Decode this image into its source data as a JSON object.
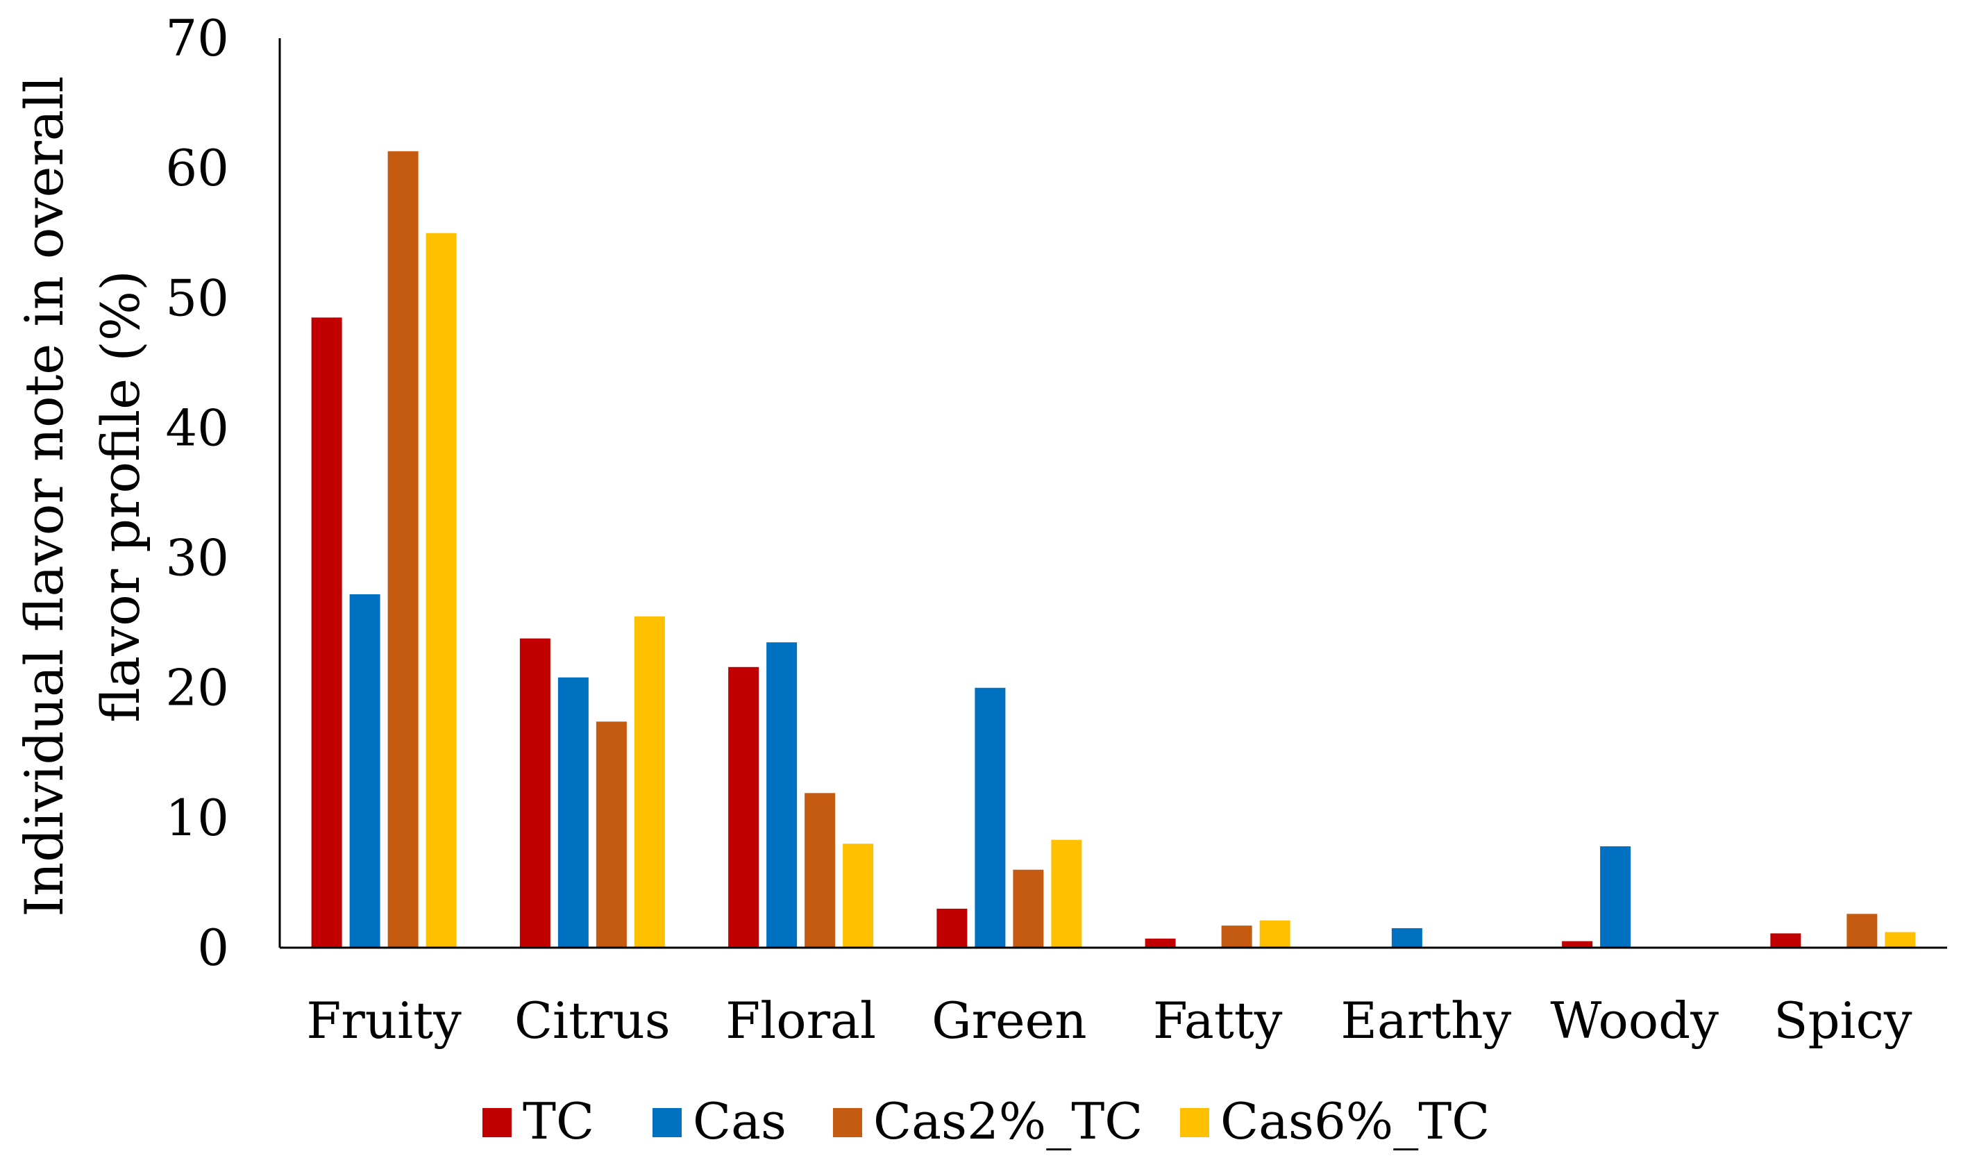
{
  "chart_data": {
    "type": "bar",
    "title": "",
    "xlabel": "",
    "ylabel_line1": "Individual flavor note in overall",
    "ylabel_line2": "flavor profile (%)",
    "ylim": [
      0,
      70
    ],
    "yticks": [
      0,
      10,
      20,
      30,
      40,
      50,
      60,
      70
    ],
    "ytick_labels": [
      "0",
      "10",
      "20",
      "30",
      "40",
      "50",
      "60",
      "70"
    ],
    "grid": false,
    "legend_position": "bottom",
    "categories": [
      "Fruity",
      "Citrus",
      "Floral",
      "Green",
      "Fatty",
      "Earthy",
      "Woody",
      "Spicy"
    ],
    "series": [
      {
        "name": "TC",
        "color": "#c00000",
        "values": [
          48.5,
          23.8,
          21.6,
          3.0,
          0.7,
          0,
          0.5,
          1.1
        ]
      },
      {
        "name": "Cas",
        "color": "#0070c0",
        "values": [
          27.2,
          20.8,
          23.5,
          20.0,
          0,
          1.5,
          7.8,
          0
        ]
      },
      {
        "name": "Cas2%_TC",
        "color": "#c55a11",
        "values": [
          61.3,
          17.4,
          11.9,
          6.0,
          1.7,
          0,
          0,
          2.6
        ]
      },
      {
        "name": "Cas6%_TC",
        "color": "#ffc000",
        "values": [
          55.0,
          25.5,
          8.0,
          8.3,
          2.1,
          0,
          0,
          1.2
        ]
      }
    ]
  }
}
